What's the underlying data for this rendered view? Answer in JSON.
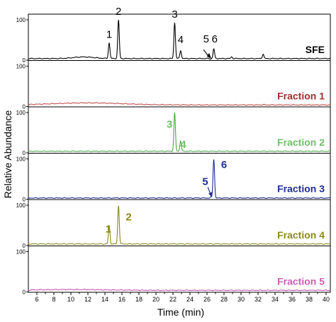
{
  "chart_data": {
    "type": "line",
    "layout": "stacked-panels",
    "xlabel": "Time (min)",
    "ylabel": "Relative Abundance",
    "xlim": [
      5,
      40.5
    ],
    "x_ticks": [
      6,
      7,
      8,
      9,
      10,
      11,
      12,
      13,
      14,
      15,
      16,
      17,
      18,
      19,
      20,
      21,
      22,
      23,
      24,
      25,
      26,
      27,
      28,
      29,
      30,
      31,
      32,
      33,
      34,
      35,
      36,
      37,
      38,
      39,
      40
    ],
    "x_tick_labels": [
      "6",
      "8",
      "10",
      "12",
      "14",
      "16",
      "18",
      "20",
      "22",
      "24",
      "26",
      "28",
      "30",
      "32",
      "34",
      "36",
      "38",
      "40"
    ],
    "y_tick_labels": [
      "0",
      "100"
    ],
    "ylim": [
      0,
      100
    ],
    "grid": false,
    "panels": [
      {
        "name": "SFE",
        "color": "#000000",
        "label_color": "#000000",
        "baseline": 4,
        "bumps": [
          [
            11.5,
            4,
            1.2
          ]
        ],
        "peaks": [
          {
            "x": 14.5,
            "y": 43
          },
          {
            "x": 15.6,
            "y": 100
          },
          {
            "x": 22.2,
            "y": 93
          },
          {
            "x": 22.9,
            "y": 24
          },
          {
            "x": 26.4,
            "y": 3
          },
          {
            "x": 26.8,
            "y": 28
          },
          {
            "x": 28.9,
            "y": 8
          },
          {
            "x": 32.6,
            "y": 15
          },
          {
            "x": 38.2,
            "y": 4
          }
        ],
        "annotations": [
          {
            "text": "1",
            "x": 14.5
          },
          {
            "text": "2",
            "x": 15.6
          },
          {
            "text": "3",
            "x": 22.2
          },
          {
            "text": "4",
            "x": 22.9
          },
          {
            "text": "5",
            "x": 25.9
          },
          {
            "text": "6",
            "x": 26.9
          }
        ]
      },
      {
        "name": "Fraction 1",
        "color": "#c0504d",
        "label_color": "#a03030",
        "baseline": 4,
        "bumps": [
          [
            12,
            5,
            4
          ]
        ],
        "peaks": [
          {
            "x": 32.6,
            "y": 5
          }
        ],
        "annotations": []
      },
      {
        "name": "Fraction 2",
        "color": "#4ea64a",
        "label_color": "#6fbf6a",
        "baseline": 4,
        "bumps": [],
        "peaks": [
          {
            "x": 22.2,
            "y": 100
          },
          {
            "x": 22.9,
            "y": 30
          }
        ],
        "annotations": [
          {
            "text": "3",
            "x": 21.6
          },
          {
            "text": "4",
            "x": 23.2
          }
        ]
      },
      {
        "name": "Fraction 3",
        "color": "#1f2f8f",
        "label_color": "#1f2f8f",
        "baseline": 3,
        "bumps": [],
        "peaks": [
          {
            "x": 26.5,
            "y": 6
          },
          {
            "x": 26.8,
            "y": 100
          }
        ],
        "annotations": [
          {
            "text": "5",
            "x": 25.8
          },
          {
            "text": "6",
            "x": 28.0
          }
        ]
      },
      {
        "name": "Fraction 4",
        "color": "#8b8a1a",
        "label_color": "#8b8a1a",
        "baseline": 4,
        "bumps": [],
        "peaks": [
          {
            "x": 14.5,
            "y": 50
          },
          {
            "x": 15.6,
            "y": 100
          }
        ],
        "annotations": [
          {
            "text": "1",
            "x": 14.4
          },
          {
            "text": "2",
            "x": 16.8
          }
        ]
      },
      {
        "name": "Fraction 5",
        "color": "#c94fb0",
        "label_color": "#c95fb5",
        "baseline": 4,
        "bumps": [
          [
            10,
            2,
            4
          ]
        ],
        "peaks": [
          {
            "x": 29,
            "y": 4
          },
          {
            "x": 38.2,
            "y": 4
          }
        ],
        "annotations": []
      }
    ]
  }
}
